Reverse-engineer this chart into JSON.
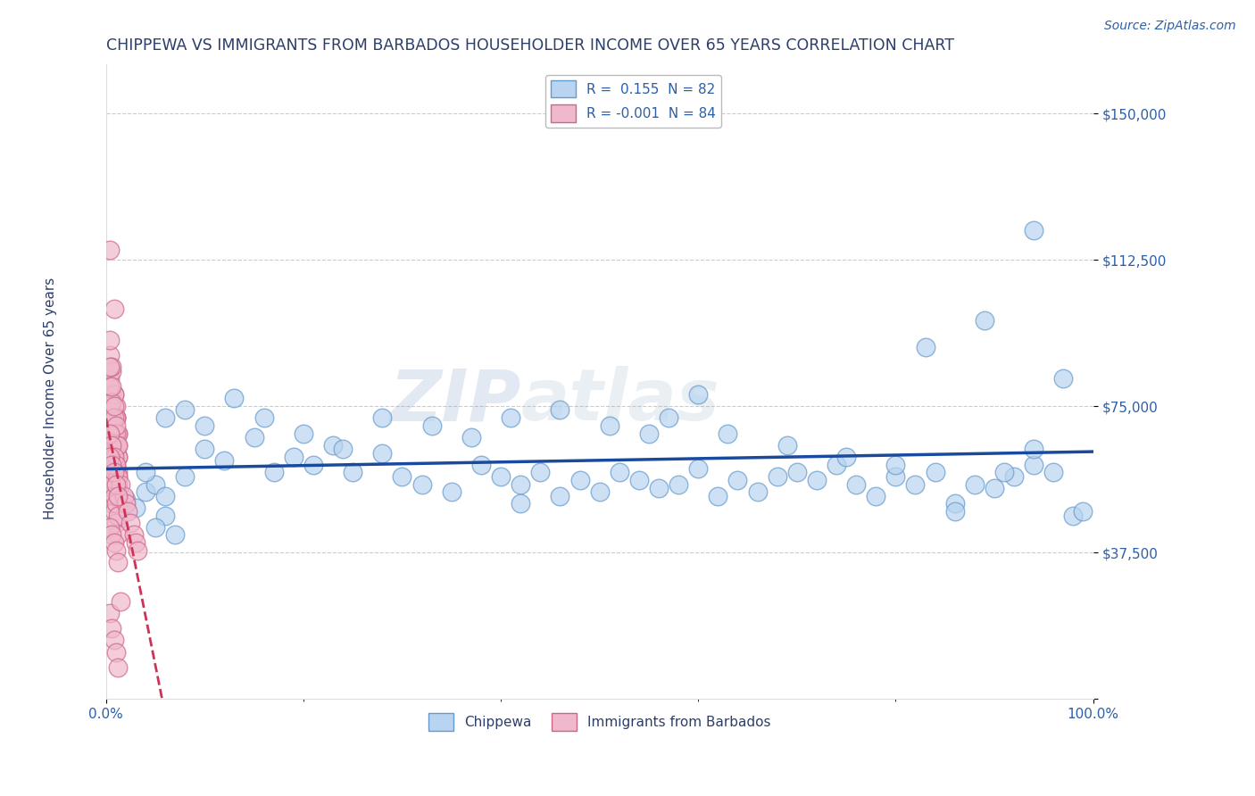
{
  "title": "CHIPPEWA VS IMMIGRANTS FROM BARBADOS HOUSEHOLDER INCOME OVER 65 YEARS CORRELATION CHART",
  "source_text": "Source: ZipAtlas.com",
  "ylabel": "Householder Income Over 65 years",
  "xlim": [
    0.0,
    1.0
  ],
  "ylim": [
    0,
    162500
  ],
  "yticks": [
    0,
    37500,
    75000,
    112500,
    150000
  ],
  "ytick_labels": [
    "",
    "$37,500",
    "$75,000",
    "$112,500",
    "$150,000"
  ],
  "xticks": [
    0.0,
    1.0
  ],
  "xtick_labels": [
    "0.0%",
    "100.0%"
  ],
  "watermark_zip": "ZIP",
  "watermark_atlas": "atlas",
  "legend_r_blue": "R =  0.155  N = 82",
  "legend_r_pink": "R = -0.001  N = 84",
  "blue_scatter_x": [
    0.02,
    0.03,
    0.04,
    0.05,
    0.06,
    0.04,
    0.05,
    0.06,
    0.07,
    0.08,
    0.1,
    0.12,
    0.15,
    0.17,
    0.19,
    0.21,
    0.23,
    0.25,
    0.28,
    0.3,
    0.32,
    0.35,
    0.38,
    0.4,
    0.42,
    0.44,
    0.46,
    0.48,
    0.5,
    0.52,
    0.54,
    0.56,
    0.58,
    0.6,
    0.62,
    0.64,
    0.66,
    0.68,
    0.7,
    0.72,
    0.74,
    0.76,
    0.78,
    0.8,
    0.82,
    0.84,
    0.86,
    0.88,
    0.9,
    0.92,
    0.94,
    0.96,
    0.98,
    0.06,
    0.08,
    0.1,
    0.13,
    0.16,
    0.2,
    0.24,
    0.28,
    0.33,
    0.37,
    0.41,
    0.46,
    0.51,
    0.57,
    0.63,
    0.69,
    0.75,
    0.8,
    0.86,
    0.91,
    0.94,
    0.97,
    0.99,
    0.83,
    0.89,
    0.94,
    0.6,
    0.42,
    0.55
  ],
  "blue_scatter_y": [
    51000,
    49000,
    53000,
    55000,
    47000,
    58000,
    44000,
    52000,
    42000,
    57000,
    64000,
    61000,
    67000,
    58000,
    62000,
    60000,
    65000,
    58000,
    63000,
    57000,
    55000,
    53000,
    60000,
    57000,
    55000,
    58000,
    52000,
    56000,
    53000,
    58000,
    56000,
    54000,
    55000,
    59000,
    52000,
    56000,
    53000,
    57000,
    58000,
    56000,
    60000,
    55000,
    52000,
    57000,
    55000,
    58000,
    50000,
    55000,
    54000,
    57000,
    60000,
    58000,
    47000,
    72000,
    74000,
    70000,
    77000,
    72000,
    68000,
    64000,
    72000,
    70000,
    67000,
    72000,
    74000,
    70000,
    72000,
    68000,
    65000,
    62000,
    60000,
    48000,
    58000,
    64000,
    82000,
    48000,
    90000,
    97000,
    120000,
    78000,
    50000,
    68000
  ],
  "pink_scatter_x": [
    0.004,
    0.006,
    0.008,
    0.01,
    0.012,
    0.004,
    0.006,
    0.008,
    0.01,
    0.012,
    0.004,
    0.006,
    0.008,
    0.01,
    0.012,
    0.004,
    0.006,
    0.008,
    0.01,
    0.012,
    0.004,
    0.006,
    0.008,
    0.01,
    0.012,
    0.004,
    0.006,
    0.008,
    0.01,
    0.012,
    0.004,
    0.006,
    0.008,
    0.01,
    0.012,
    0.004,
    0.006,
    0.008,
    0.01,
    0.012,
    0.004,
    0.006,
    0.008,
    0.01,
    0.012,
    0.004,
    0.006,
    0.008,
    0.01,
    0.012,
    0.004,
    0.006,
    0.008,
    0.01,
    0.012,
    0.004,
    0.006,
    0.008,
    0.01,
    0.012,
    0.004,
    0.006,
    0.008,
    0.01,
    0.012,
    0.015,
    0.018,
    0.02,
    0.022,
    0.025,
    0.028,
    0.03,
    0.032,
    0.004,
    0.006,
    0.008,
    0.01,
    0.012,
    0.004,
    0.006,
    0.008,
    0.01,
    0.012,
    0.015
  ],
  "pink_scatter_y": [
    115000,
    65000,
    100000,
    72000,
    58000,
    82000,
    78000,
    68000,
    75000,
    62000,
    88000,
    84000,
    78000,
    72000,
    68000,
    92000,
    85000,
    78000,
    72000,
    68000,
    65000,
    62000,
    60000,
    58000,
    55000,
    52000,
    50000,
    48000,
    45000,
    42000,
    68000,
    65000,
    62000,
    60000,
    57000,
    75000,
    72000,
    68000,
    65000,
    62000,
    80000,
    76000,
    72000,
    68000,
    65000,
    85000,
    80000,
    75000,
    70000,
    65000,
    58000,
    55000,
    52000,
    50000,
    47000,
    44000,
    42000,
    40000,
    38000,
    35000,
    68000,
    65000,
    62000,
    60000,
    57000,
    55000,
    52000,
    50000,
    48000,
    45000,
    42000,
    40000,
    38000,
    62000,
    60000,
    58000,
    55000,
    52000,
    22000,
    18000,
    15000,
    12000,
    8000,
    25000
  ],
  "blue_color": "#b8d4f0",
  "blue_edge": "#6699cc",
  "pink_color": "#f0b8cc",
  "pink_edge": "#cc6688",
  "blue_line_color": "#1a4a9e",
  "pink_line_color": "#cc3355",
  "grid_color": "#cccccc",
  "bg_color": "#ffffff",
  "title_color": "#2c3e6b",
  "tick_color": "#2c5fa8",
  "source_color": "#2c5fa8"
}
